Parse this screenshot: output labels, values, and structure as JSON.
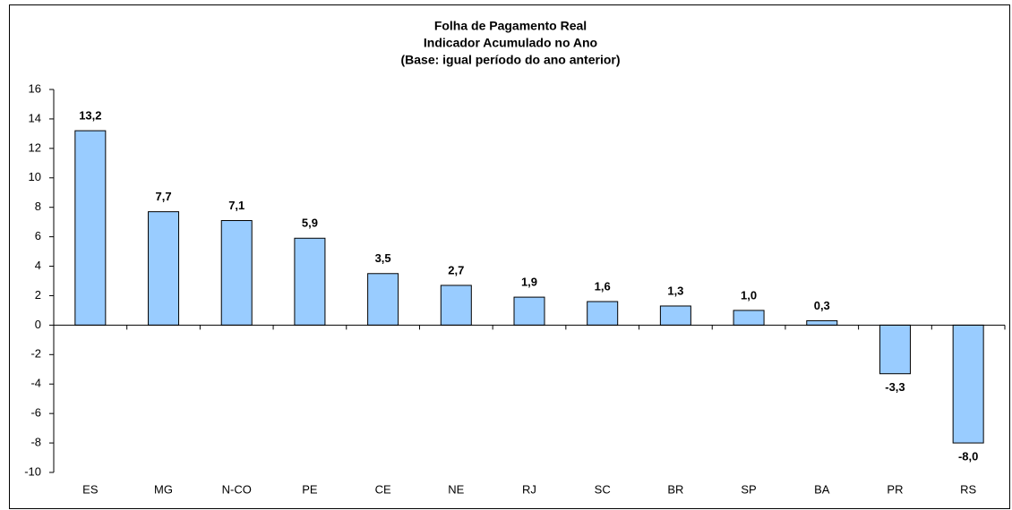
{
  "chart_data": {
    "type": "bar",
    "title": [
      "Folha de Pagamento Real",
      "Indicador Acumulado no Ano",
      "(Base: igual período do ano anterior)"
    ],
    "categories": [
      "ES",
      "MG",
      "N-CO",
      "PE",
      "CE",
      "NE",
      "RJ",
      "SC",
      "BR",
      "SP",
      "BA",
      "PR",
      "RS"
    ],
    "values": [
      13.2,
      7.7,
      7.1,
      5.9,
      3.5,
      2.7,
      1.9,
      1.6,
      1.3,
      1.0,
      0.3,
      -3.3,
      -8.0
    ],
    "value_labels": [
      "13,2",
      "7,7",
      "7,1",
      "5,9",
      "3,5",
      "2,7",
      "1,9",
      "1,6",
      "1,3",
      "1,0",
      "0,3",
      "-3,3",
      "-8,0"
    ],
    "color": "#99ccff",
    "ylim": [
      -10,
      16
    ],
    "yticks": [
      -10,
      -8,
      -6,
      -4,
      -2,
      0,
      2,
      4,
      6,
      8,
      10,
      12,
      14,
      16
    ],
    "grid": false
  }
}
